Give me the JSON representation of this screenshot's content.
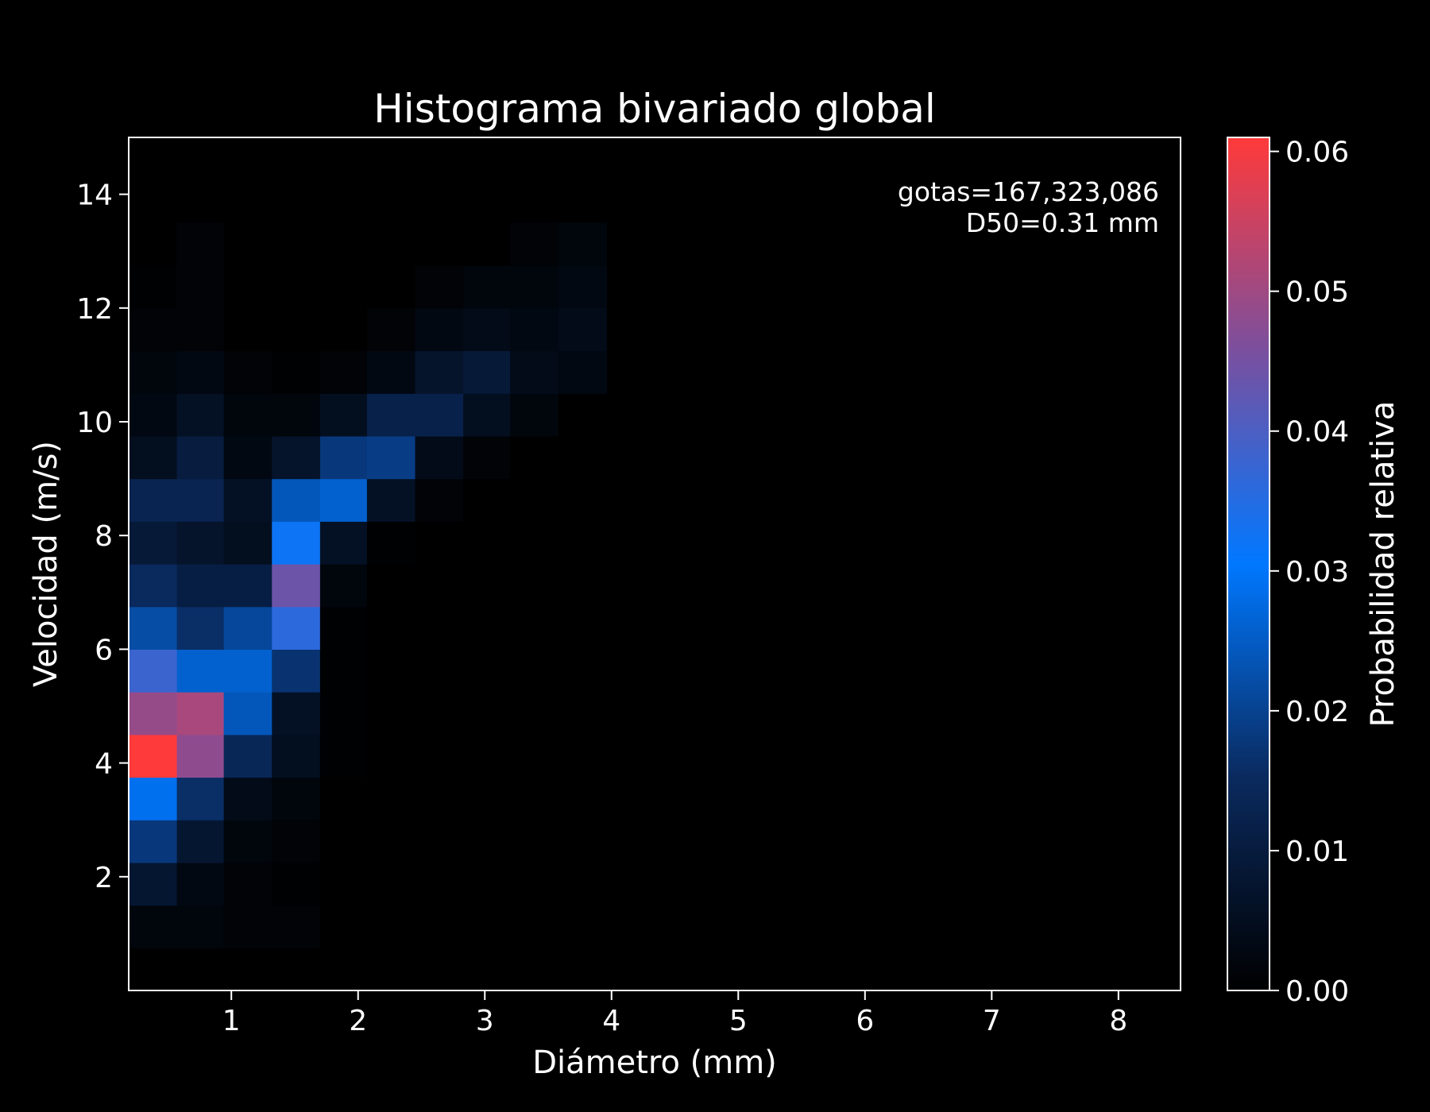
{
  "chart_data": {
    "type": "heatmap",
    "title": "Histograma bivariado global",
    "xlabel": "Diámetro (mm)",
    "ylabel": "Velocidad (m/s)",
    "colorbar_label": "Probabilidad relativa",
    "annotation": [
      "gotas=167,323,086",
      "D50=0.31 mm"
    ],
    "xlim": [
      0.19,
      8.49
    ],
    "ylim": [
      0,
      15
    ],
    "x_ticks": [
      1,
      2,
      3,
      4,
      5,
      6,
      7,
      8
    ],
    "y_ticks": [
      2,
      4,
      6,
      8,
      10,
      12,
      14
    ],
    "colorbar_range": [
      0,
      0.061
    ],
    "colorbar_ticks": [
      "0.00",
      "0.01",
      "0.02",
      "0.03",
      "0.04",
      "0.05",
      "0.06"
    ],
    "colors": {
      "background": "#000000",
      "axes": "#ffffff",
      "colormap": [
        [
          0.0,
          "#000000"
        ],
        [
          0.25,
          "#0a2a5e"
        ],
        [
          0.5,
          "#0078ff"
        ],
        [
          0.75,
          "#7a4f9e"
        ],
        [
          1.0,
          "#ff3a3a"
        ]
      ]
    },
    "x_bin_edges": [
      0.19,
      0.57,
      0.94,
      1.32,
      1.7,
      2.07,
      2.45,
      2.83,
      3.2,
      3.58,
      3.96
    ],
    "y_bin_edges": [
      0.75,
      1.5,
      2.25,
      3.0,
      3.75,
      4.5,
      5.25,
      6.0,
      6.75,
      7.5,
      8.25,
      9.0,
      9.75,
      10.5,
      11.25,
      12.0,
      12.75,
      13.5
    ],
    "values": [
      [
        0.002,
        0.002,
        0.001,
        0.001,
        0.0,
        0.0,
        0.0,
        0.0,
        0.0,
        0.0
      ],
      [
        0.008,
        0.003,
        0.001,
        0.0005,
        0.0,
        0.0,
        0.0,
        0.0,
        0.0,
        0.0
      ],
      [
        0.018,
        0.008,
        0.002,
        0.001,
        0.0,
        0.0,
        0.0,
        0.0,
        0.0,
        0.0
      ],
      [
        0.029,
        0.016,
        0.004,
        0.002,
        0.0,
        0.0,
        0.0,
        0.0,
        0.0,
        0.0
      ],
      [
        0.061,
        0.048,
        0.014,
        0.005,
        0.0005,
        0.0,
        0.0,
        0.0,
        0.0,
        0.0
      ],
      [
        0.049,
        0.051,
        0.024,
        0.006,
        0.0005,
        0.0,
        0.0,
        0.0,
        0.0,
        0.0
      ],
      [
        0.038,
        0.026,
        0.026,
        0.017,
        0.0005,
        0.0,
        0.0,
        0.0,
        0.0,
        0.0
      ],
      [
        0.022,
        0.016,
        0.021,
        0.036,
        0.0005,
        0.0,
        0.0,
        0.0,
        0.0,
        0.0
      ],
      [
        0.015,
        0.011,
        0.011,
        0.044,
        0.002,
        0.0,
        0.0,
        0.0,
        0.0,
        0.0
      ],
      [
        0.009,
        0.007,
        0.005,
        0.032,
        0.006,
        0.0005,
        0.0,
        0.0,
        0.0,
        0.0
      ],
      [
        0.013,
        0.013,
        0.006,
        0.024,
        0.026,
        0.006,
        0.001,
        0.0,
        0.0,
        0.0
      ],
      [
        0.005,
        0.01,
        0.003,
        0.007,
        0.018,
        0.019,
        0.004,
        0.001,
        0.0,
        0.0
      ],
      [
        0.003,
        0.006,
        0.002,
        0.002,
        0.005,
        0.012,
        0.012,
        0.005,
        0.002,
        0.0
      ],
      [
        0.002,
        0.003,
        0.001,
        0.0005,
        0.001,
        0.003,
        0.007,
        0.009,
        0.004,
        0.003
      ],
      [
        0.001,
        0.001,
        0.0,
        0.0,
        0.0,
        0.001,
        0.003,
        0.004,
        0.003,
        0.004
      ],
      [
        0.0005,
        0.001,
        0.0,
        0.0,
        0.0,
        0.0,
        0.001,
        0.002,
        0.002,
        0.003
      ],
      [
        0.0,
        0.001,
        0.0,
        0.0,
        0.0,
        0.0,
        0.0,
        0.0,
        0.001,
        0.002
      ]
    ]
  }
}
